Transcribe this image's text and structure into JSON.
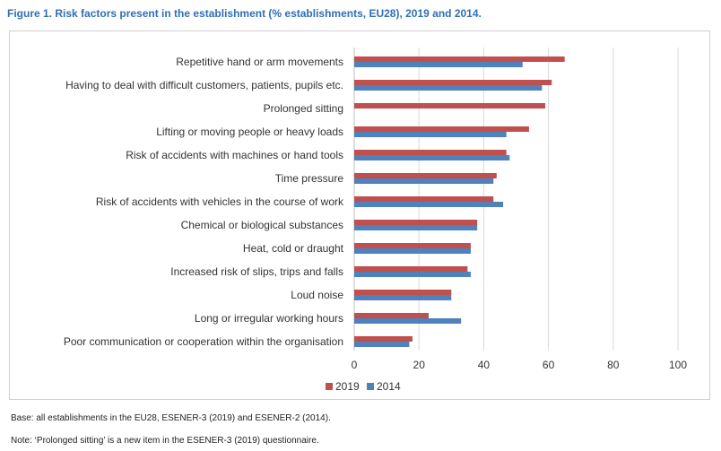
{
  "figure_title": "Figure 1. Risk factors present in the establishment (% establishments, EU28), 2019 and 2014.",
  "notes": {
    "base": "Base: all establishments in the EU28, ESENER-3 (2019) and ESENER-2 (2014).",
    "note": "Note: ‘Prolonged sitting’ is a new item in the ESENER-3 (2019) questionnaire."
  },
  "chart_data": {
    "type": "bar",
    "orientation": "horizontal",
    "title": "",
    "xlabel": "",
    "ylabel": "",
    "xlim": [
      0,
      100
    ],
    "x_ticks": [
      0,
      20,
      40,
      60,
      80,
      100
    ],
    "grid": true,
    "legend_position": "bottom",
    "categories": [
      "Repetitive hand or arm movements",
      "Having to deal with difficult customers, patients, pupils etc.",
      "Prolonged sitting",
      "Lifting or moving people or heavy loads",
      "Risk of accidents with machines or hand tools",
      "Time pressure",
      "Risk of accidents with vehicles in the course of work",
      "Chemical or biological substances",
      "Heat, cold or draught",
      "Increased risk of slips, trips and falls",
      "Loud noise",
      "Long or irregular working hours",
      "Poor communication or cooperation within the organisation"
    ],
    "series": [
      {
        "name": "2019",
        "color": "#c0504d",
        "values": [
          65,
          61,
          59,
          54,
          47,
          44,
          43,
          38,
          36,
          35,
          30,
          23,
          18
        ]
      },
      {
        "name": "2014",
        "color": "#4f81bd",
        "values": [
          52,
          58,
          null,
          47,
          48,
          43,
          46,
          38,
          36,
          36,
          30,
          33,
          17
        ]
      }
    ]
  }
}
